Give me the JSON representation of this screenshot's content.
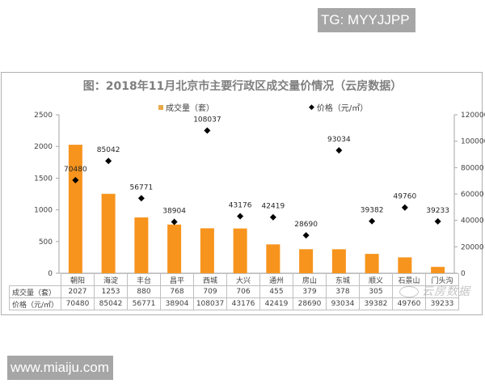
{
  "watermarks": {
    "top_tag": "TG: MYYJJPP",
    "bottom_tag": "www.miaiju.com",
    "brand": "云房数据"
  },
  "chart_data": {
    "type": "bar",
    "title": "图：2018年11月北京市主要行政区成交量价情况（云房数据）",
    "categories": [
      "朝阳",
      "海淀",
      "丰台",
      "昌平",
      "西城",
      "大兴",
      "通州",
      "房山",
      "东城",
      "顺义",
      "石景山",
      "门头沟"
    ],
    "series": [
      {
        "name": "成交量（套）",
        "type": "bar",
        "axis": "left",
        "color": "#f7941d",
        "values": [
          2027,
          1253,
          880,
          768,
          709,
          706,
          455,
          379,
          378,
          305,
          250,
          100
        ]
      },
      {
        "name": "价格（元/㎡）",
        "type": "scatter",
        "marker": "diamond",
        "axis": "right",
        "color": "#000000",
        "values": [
          70480,
          85042,
          56771,
          38904,
          108037,
          43176,
          42419,
          28690,
          93034,
          39382,
          49760,
          39233
        ]
      }
    ],
    "left_axis": {
      "ylim": [
        0,
        2500
      ],
      "ticks": [
        "0",
        "500",
        "1000",
        "1500",
        "2000",
        "2500"
      ]
    },
    "right_axis": {
      "ylim": [
        0,
        120000
      ],
      "ticks": [
        "0",
        "20000",
        "40000",
        "60000",
        "80000",
        "100000",
        "120000"
      ]
    },
    "legend": [
      "成交量（套）",
      "价格（元/㎡）"
    ],
    "legend_position": "top",
    "grid": false,
    "data_table": {
      "row_labels": [
        "成交量（套）",
        "价格（元/㎡）"
      ],
      "volume_row": [
        "2027",
        "1253",
        "880",
        "768",
        "709",
        "706",
        "455",
        "379",
        "378",
        "305",
        "",
        ""
      ],
      "price_row": [
        "70480",
        "85042",
        "56771",
        "38904",
        "108037",
        "43176",
        "42419",
        "28690",
        "93034",
        "39382",
        "49760",
        "39233"
      ]
    }
  }
}
